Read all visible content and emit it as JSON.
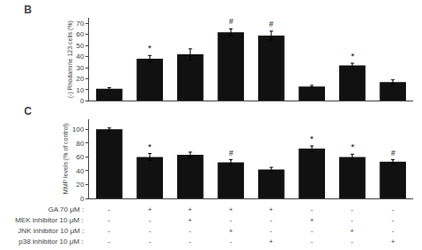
{
  "chart_data": [
    {
      "type": "bar",
      "title": "B",
      "ylabel": "(-) Rhodamine 123 cells (%)",
      "categories": [
        null,
        null,
        null,
        null,
        null,
        null,
        null,
        null
      ],
      "values": [
        11,
        38,
        42,
        62,
        59,
        13,
        32,
        17
      ],
      "errors": [
        1,
        3,
        5,
        3,
        4,
        1,
        2,
        2
      ],
      "color": "#111111",
      "ylim": [
        0,
        75
      ],
      "yticks": [
        0,
        10,
        20,
        30,
        40,
        50,
        60,
        70
      ],
      "annotations": [
        {
          "index": 1,
          "text": "*"
        },
        {
          "index": 3,
          "text": "#"
        },
        {
          "index": 4,
          "text": "#"
        },
        {
          "index": 6,
          "text": "*"
        }
      ],
      "grid": false,
      "tick_labels": "y"
    },
    {
      "type": "bar",
      "title": "C",
      "ylabel": "MMP levels (% of control)",
      "categories": [
        null,
        null,
        null,
        null,
        null,
        null,
        null,
        null
      ],
      "values": [
        100,
        60,
        63,
        52,
        42,
        72,
        60,
        53
      ],
      "errors": [
        2,
        5,
        4,
        4,
        3,
        4,
        4,
        3
      ],
      "color": "#111111",
      "ylim": [
        0,
        115
      ],
      "yticks": [
        0,
        20,
        40,
        60,
        80,
        100
      ],
      "annotations": [
        {
          "index": 1,
          "text": "*"
        },
        {
          "index": 3,
          "text": "#"
        },
        {
          "index": 5,
          "text": "*"
        },
        {
          "index": 6,
          "text": "*"
        },
        {
          "index": 7,
          "text": "#"
        }
      ],
      "grid": false,
      "tick_labels": "y",
      "table": [
        {
          "label": "GA 70 μM :",
          "values": [
            "-",
            "+",
            "+",
            "+",
            "+",
            "-",
            "-",
            "-"
          ]
        },
        {
          "label": "MEK inhibitor 10 μM :",
          "values": [
            "-",
            "-",
            "+",
            "-",
            "-",
            "+",
            "-",
            "-"
          ]
        },
        {
          "label": "JNK inhibitor 10 μM :",
          "values": [
            "-",
            "-",
            "-",
            "+",
            "-",
            "-",
            "+",
            "-"
          ]
        },
        {
          "label": "p38 inhibitor 10 μM :",
          "values": [
            "-",
            "-",
            "-",
            "-",
            "+",
            "-",
            "-",
            "+"
          ]
        }
      ]
    }
  ]
}
